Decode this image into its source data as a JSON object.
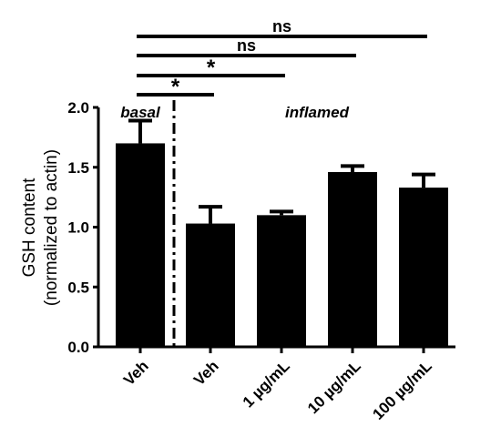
{
  "chart_data": {
    "type": "bar",
    "categories": [
      "Veh",
      "Veh",
      "1  µg/mL",
      "10 µg/mL",
      "100 µg/mL"
    ],
    "values": [
      1.7,
      1.03,
      1.1,
      1.46,
      1.33
    ],
    "errors": [
      0.19,
      0.14,
      0.03,
      0.05,
      0.11
    ],
    "ylabel": [
      "GSH content",
      "(normalized to actin)"
    ],
    "ylim": [
      0,
      2.0
    ],
    "yticks": [
      "0.0",
      "0.5",
      "1.0",
      "1.5",
      "2.0"
    ],
    "yticks_values": [
      0,
      0.5,
      1.0,
      1.5,
      2.0
    ],
    "bar_color": "#000000",
    "grid": false,
    "group_labels": {
      "left": "basal",
      "right": "inflamed"
    },
    "significance": [
      {
        "label": "*",
        "from": 0,
        "to": 1
      },
      {
        "label": "*",
        "from": 0,
        "to": 2
      },
      {
        "label": "ns",
        "from": 0,
        "to": 3
      },
      {
        "label": "ns",
        "from": 0,
        "to": 4
      }
    ]
  }
}
